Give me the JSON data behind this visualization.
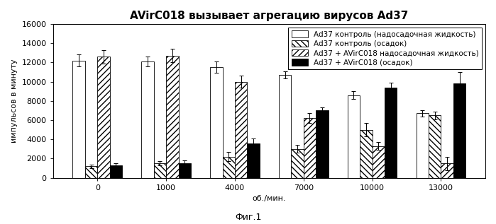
{
  "title": "AVirC018 вызывает агрегацию вирусов Ad37",
  "xlabel": "об./мин.",
  "ylabel": "импульсов в минуту",
  "caption": "Фиг.1",
  "categories": [
    "0",
    "1000",
    "4000",
    "7000",
    "10000",
    "13000"
  ],
  "series": {
    "ad37_ctrl_super": [
      12200,
      12100,
      11500,
      10700,
      8600,
      6700
    ],
    "ad37_ctrl_pellet": [
      1200,
      1500,
      2200,
      3000,
      5000,
      6500
    ],
    "ad37_avirC018_super": [
      12600,
      12700,
      10000,
      6200,
      3300,
      1500
    ],
    "ad37_avirC018_pellet": [
      1300,
      1500,
      3600,
      7000,
      9400,
      9800
    ]
  },
  "errors": {
    "ad37_ctrl_super": [
      600,
      500,
      600,
      400,
      400,
      300
    ],
    "ad37_ctrl_pellet": [
      200,
      200,
      500,
      400,
      700,
      400
    ],
    "ad37_avirC018_super": [
      700,
      700,
      600,
      500,
      400,
      700
    ],
    "ad37_avirC018_pellet": [
      200,
      300,
      500,
      300,
      500,
      1200
    ]
  },
  "ylim": [
    0,
    16000
  ],
  "yticks": [
    0,
    2000,
    4000,
    6000,
    8000,
    10000,
    12000,
    14000,
    16000
  ],
  "legend_labels": [
    "Ad37 контроль (надосадочная жидкость)",
    "Ad37 контроль (осадок)",
    "Ad37 + AVirC018 надосадочная жидкость)",
    "Ad37 + AVirC018 (осадок)"
  ],
  "facecolors": [
    "white",
    "white",
    "white",
    "black"
  ],
  "hatches": [
    null,
    "\\\\\\\\",
    "////",
    null
  ],
  "bar_width": 0.18,
  "background_color": "#ffffff",
  "edge_color": "#000000",
  "title_fontsize": 11,
  "axis_fontsize": 8,
  "tick_fontsize": 8,
  "legend_fontsize": 7.5,
  "caption_fontsize": 9
}
